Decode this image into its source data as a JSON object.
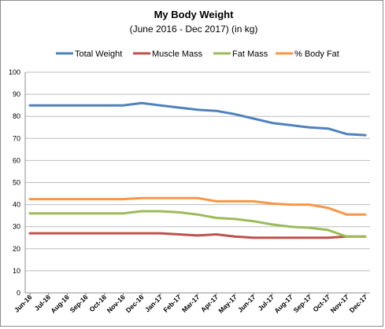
{
  "chart_data": {
    "type": "line",
    "title": "My Body Weight",
    "subtitle": "(June 2016 - Dec 2017) (in kg)",
    "xlabel": "",
    "ylabel": "",
    "ylim": [
      0,
      100
    ],
    "yticks": [
      0,
      10,
      20,
      30,
      40,
      50,
      60,
      70,
      80,
      90,
      100
    ],
    "grid": true,
    "legend": "top",
    "categories": [
      "Jun-16",
      "Jul-16",
      "Aug-16",
      "Sep-16",
      "Oct-16",
      "Nov-16",
      "Dec-16",
      "Jan-17",
      "Feb-17",
      "Mar-17",
      "Apr-17",
      "May-17",
      "Jun-17",
      "Jul-17",
      "Aug-17",
      "Sep-17",
      "Oct-17",
      "Nov-17",
      "Dec-17"
    ],
    "series": [
      {
        "name": "Total Weight",
        "color": "#4f81bd",
        "values": [
          85,
          85,
          85,
          85,
          85,
          85,
          86,
          85,
          84,
          83,
          82.5,
          81,
          79,
          77,
          76,
          75,
          74.5,
          72,
          71.5
        ]
      },
      {
        "name": "Muscle Mass",
        "color": "#c0504d",
        "values": [
          27,
          27,
          27,
          27,
          27,
          27,
          27,
          27,
          26.5,
          26,
          26.5,
          25.5,
          25,
          25,
          25,
          25,
          25,
          25.5,
          25.5
        ]
      },
      {
        "name": "Fat Mass",
        "color": "#9bbb59",
        "values": [
          36,
          36,
          36,
          36,
          36,
          36,
          37,
          37,
          36.5,
          35.5,
          34,
          33.5,
          32.5,
          31,
          30,
          29.5,
          28.5,
          25.5,
          25.5
        ]
      },
      {
        "name": "% Body Fat",
        "color": "#f79646",
        "values": [
          42.5,
          42.5,
          42.5,
          42.5,
          42.5,
          42.5,
          43,
          43,
          43,
          43,
          41.5,
          41.5,
          41.5,
          40.5,
          40,
          40,
          38.5,
          35.5,
          35.5
        ]
      }
    ]
  }
}
